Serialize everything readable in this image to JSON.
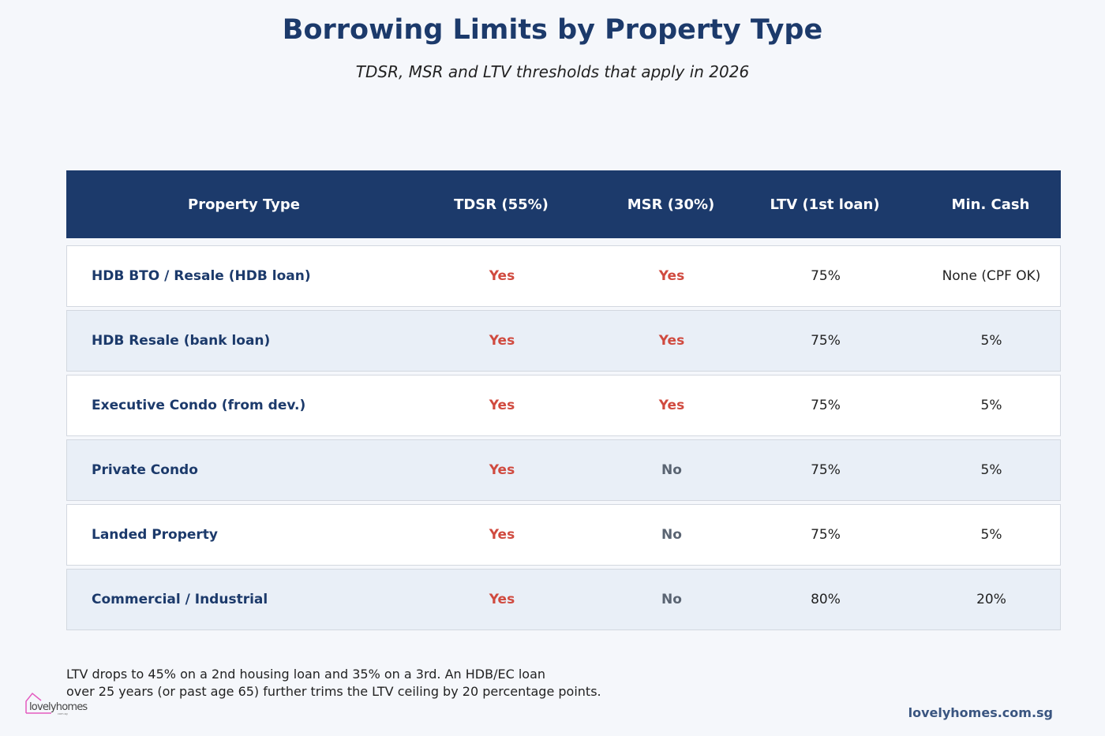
{
  "header": {
    "title": "Borrowing Limits by Property Type",
    "subtitle": "TDSR, MSR and LTV thresholds that apply in 2026"
  },
  "table": {
    "columns": [
      "Property Type",
      "TDSR (55%)",
      "MSR (30%)",
      "LTV (1st loan)",
      "Min. Cash"
    ],
    "rows": [
      {
        "type": "HDB BTO / Resale (HDB loan)",
        "tdsr": "Yes",
        "msr": "Yes",
        "ltv": "75%",
        "cash": "None (CPF OK)"
      },
      {
        "type": "HDB Resale (bank loan)",
        "tdsr": "Yes",
        "msr": "Yes",
        "ltv": "75%",
        "cash": "5%"
      },
      {
        "type": "Executive Condo (from dev.)",
        "tdsr": "Yes",
        "msr": "Yes",
        "ltv": "75%",
        "cash": "5%"
      },
      {
        "type": "Private Condo",
        "tdsr": "Yes",
        "msr": "No",
        "ltv": "75%",
        "cash": "5%"
      },
      {
        "type": "Landed Property",
        "tdsr": "Yes",
        "msr": "No",
        "ltv": "75%",
        "cash": "5%"
      },
      {
        "type": "Commercial / Industrial",
        "tdsr": "Yes",
        "msr": "No",
        "ltv": "80%",
        "cash": "20%"
      }
    ]
  },
  "footer": {
    "note_line1": "LTV drops to 45% on a 2nd housing loan and 35% on a 3rd. An HDB/EC loan",
    "note_line2": "over 25 years (or past age 65) further trims the LTV ceiling by 20 percentage points.",
    "site": "lovelyhomes.com.sg",
    "logo_text": "lovelyhomes",
    "logo_sub": "com.sg"
  },
  "colors": {
    "header_bg": "#1c3a6b",
    "yes": "#d04a3f",
    "no": "#5a6472",
    "row_alt": "#e9eff7",
    "logo": "#e45bc0"
  }
}
